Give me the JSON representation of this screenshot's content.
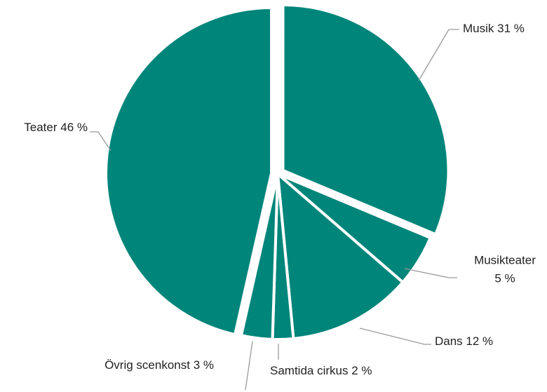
{
  "chart_data": {
    "type": "pie",
    "categories": [
      "Musik",
      "Musikteater",
      "Dans",
      "Samtida cirkus",
      "Övrig scenkonst",
      "Teater"
    ],
    "values": [
      31,
      5,
      12,
      2,
      3,
      46
    ],
    "value_labels": [
      "31 %",
      "5 %",
      "12 %",
      "2 %",
      "3 %",
      "46 %"
    ],
    "color": "#00857a"
  }
}
